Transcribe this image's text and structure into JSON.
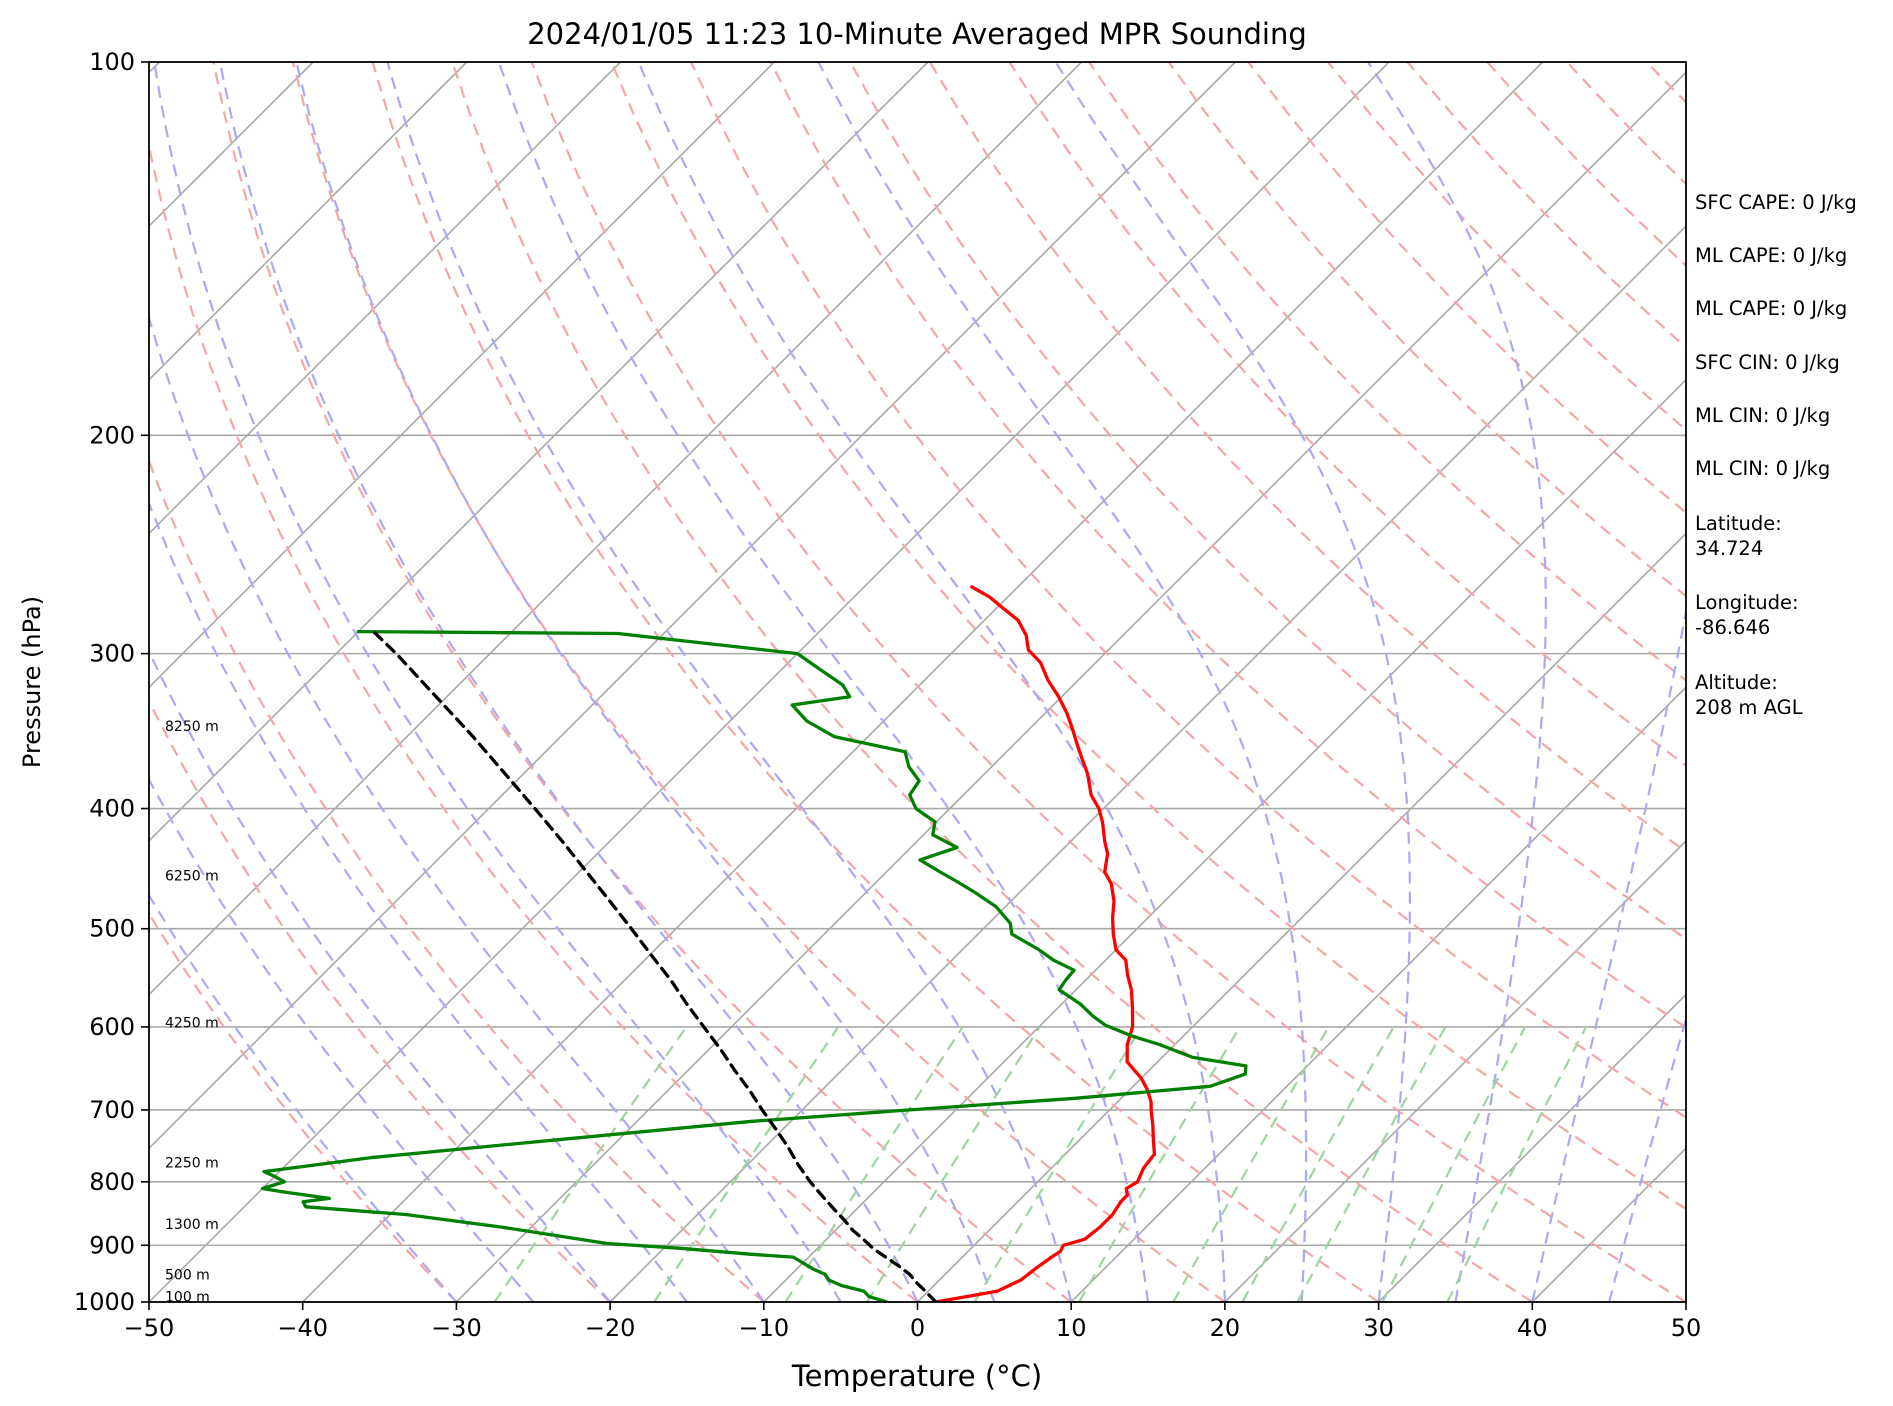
{
  "chart_data": {
    "type": "line",
    "title": "2024/01/05 11:23 10-Minute Averaged MPR Sounding",
    "xlabel": "Temperature (°C)",
    "ylabel": "Pressure (hPa)",
    "xlim": [
      -50,
      50
    ],
    "ylim": [
      1000,
      100
    ],
    "y_scale": "log",
    "x_ticks": [
      -50,
      -40,
      -30,
      -20,
      -10,
      0,
      10,
      20,
      30,
      40,
      50
    ],
    "x_tick_labels": [
      "−50",
      "−40",
      "−30",
      "−20",
      "−10",
      "0",
      "10",
      "20",
      "30",
      "40",
      "50"
    ],
    "y_ticks": [
      100,
      200,
      300,
      400,
      500,
      600,
      700,
      800,
      900,
      1000
    ],
    "y_tick_labels": [
      "100",
      "200",
      "300",
      "400",
      "500",
      "600",
      "700",
      "800",
      "900",
      "1000"
    ],
    "grid": true,
    "skew": true,
    "series": [
      {
        "color": "#ff0000",
        "points": [
          [
            1.2,
            1000
          ],
          [
            4.5,
            980
          ],
          [
            5.3,
            960
          ],
          [
            5.5,
            940
          ],
          [
            5.8,
            920
          ],
          [
            6.0,
            910
          ],
          [
            5.8,
            900
          ],
          [
            6.8,
            890
          ],
          [
            7.0,
            870
          ],
          [
            7.0,
            850
          ],
          [
            6.7,
            830
          ],
          [
            6.7,
            820
          ],
          [
            6.2,
            810
          ],
          [
            6.5,
            800
          ],
          [
            6.0,
            780
          ],
          [
            5.8,
            760
          ],
          [
            4.8,
            740
          ],
          [
            3.8,
            720
          ],
          [
            2.7,
            700
          ],
          [
            2.2,
            690
          ],
          [
            1.2,
            675
          ],
          [
            0.0,
            660
          ],
          [
            -1.0,
            650
          ],
          [
            -2.0,
            640
          ],
          [
            -3.1,
            620
          ],
          [
            -3.9,
            600
          ],
          [
            -5.1,
            580
          ],
          [
            -6.4,
            560
          ],
          [
            -7.6,
            545
          ],
          [
            -8.7,
            530
          ],
          [
            -10.0,
            520
          ],
          [
            -11.2,
            505
          ],
          [
            -12.3,
            490
          ],
          [
            -13.3,
            475
          ],
          [
            -14.6,
            460
          ],
          [
            -15.8,
            450
          ],
          [
            -16.8,
            435
          ],
          [
            -17.8,
            425
          ],
          [
            -19.2,
            410
          ],
          [
            -20.3,
            400
          ],
          [
            -21.7,
            390
          ],
          [
            -23.3,
            375
          ],
          [
            -24.6,
            365
          ],
          [
            -25.9,
            355
          ],
          [
            -27.2,
            345
          ],
          [
            -28.6,
            335
          ],
          [
            -30.2,
            325
          ],
          [
            -32.0,
            315
          ],
          [
            -33.6,
            305
          ],
          [
            -35.2,
            298
          ],
          [
            -36.3,
            290
          ],
          [
            -37.8,
            282
          ],
          [
            -39.5,
            276
          ],
          [
            -41.2,
            270
          ],
          [
            -43.0,
            265
          ]
        ]
      },
      {
        "color": "#008000",
        "points": [
          [
            -2.0,
            1000
          ],
          [
            -3.5,
            990
          ],
          [
            -4.2,
            980
          ],
          [
            -6.0,
            970
          ],
          [
            -7.2,
            960
          ],
          [
            -7.8,
            950
          ],
          [
            -9.0,
            940
          ],
          [
            -10.0,
            930
          ],
          [
            -11.0,
            920
          ],
          [
            -14.0,
            915
          ],
          [
            -19.0,
            905
          ],
          [
            -24.0,
            897
          ],
          [
            -27.5,
            885
          ],
          [
            -32.0,
            870
          ],
          [
            -39.0,
            850
          ],
          [
            -46.0,
            838
          ],
          [
            -46.5,
            830
          ],
          [
            -45.0,
            825
          ],
          [
            -48.5,
            815
          ],
          [
            -50.0,
            810
          ],
          [
            -49.0,
            800
          ],
          [
            -50.0,
            792
          ],
          [
            -51.0,
            785
          ],
          [
            -45.0,
            765
          ],
          [
            -34.0,
            740
          ],
          [
            -22.5,
            715
          ],
          [
            -13.0,
            700
          ],
          [
            -3.0,
            685
          ],
          [
            5.0,
            670
          ],
          [
            6.5,
            655
          ],
          [
            6.0,
            645
          ],
          [
            2.0,
            635
          ],
          [
            -1.0,
            620
          ],
          [
            -3.4,
            610
          ],
          [
            -5.8,
            598
          ],
          [
            -7.2,
            588
          ],
          [
            -8.8,
            575
          ],
          [
            -11.1,
            560
          ],
          [
            -11.3,
            550
          ],
          [
            -11.4,
            540
          ],
          [
            -13.4,
            530
          ],
          [
            -15.0,
            520
          ],
          [
            -17.8,
            505
          ],
          [
            -18.6,
            495
          ],
          [
            -20.6,
            480
          ],
          [
            -22.8,
            468
          ],
          [
            -24.8,
            458
          ],
          [
            -26.5,
            450
          ],
          [
            -28.6,
            440
          ],
          [
            -27.0,
            430
          ],
          [
            -29.4,
            420
          ],
          [
            -30.1,
            410
          ],
          [
            -32.2,
            400
          ],
          [
            -33.5,
            390
          ],
          [
            -33.8,
            380
          ],
          [
            -35.4,
            370
          ],
          [
            -36.6,
            360
          ],
          [
            -42.2,
            350
          ],
          [
            -45.0,
            340
          ],
          [
            -47.0,
            330
          ],
          [
            -43.8,
            325
          ],
          [
            -45.0,
            318
          ],
          [
            -47.2,
            310
          ],
          [
            -50.0,
            300
          ],
          [
            -63.0,
            289
          ],
          [
            -80.0,
            288
          ]
        ]
      },
      {
        "color": "#000000",
        "dash": true,
        "points": [
          [
            1.2,
            1000
          ],
          [
            0.5,
            990
          ],
          [
            -0.2,
            980
          ],
          [
            -1.3,
            965
          ],
          [
            -2.3,
            950
          ],
          [
            -3.6,
            935
          ],
          [
            -5.0,
            920
          ],
          [
            -6.4,
            905
          ],
          [
            -7.6,
            890
          ],
          [
            -8.9,
            875
          ],
          [
            -10.0,
            860
          ],
          [
            -11.6,
            840
          ],
          [
            -13.2,
            820
          ],
          [
            -14.8,
            800
          ],
          [
            -16.7,
            775
          ],
          [
            -18.5,
            750
          ],
          [
            -20.5,
            725
          ],
          [
            -22.6,
            700
          ],
          [
            -24.7,
            675
          ],
          [
            -27.0,
            650
          ],
          [
            -29.3,
            625
          ],
          [
            -31.8,
            600
          ],
          [
            -34.4,
            575
          ],
          [
            -37.0,
            550
          ],
          [
            -39.9,
            525
          ],
          [
            -42.9,
            500
          ],
          [
            -46.1,
            475
          ],
          [
            -49.5,
            450
          ],
          [
            -53.1,
            425
          ],
          [
            -57.0,
            400
          ],
          [
            -61.2,
            375
          ],
          [
            -65.7,
            350
          ],
          [
            -70.7,
            325
          ],
          [
            -76.1,
            300
          ],
          [
            -79.0,
            288
          ]
        ]
      }
    ],
    "height_labels": [
      {
        "text": "100 m",
        "p": 990
      },
      {
        "text": "500 m",
        "p": 950
      },
      {
        "text": "1300 m",
        "p": 865
      },
      {
        "text": "2250 m",
        "p": 772
      },
      {
        "text": "4250 m",
        "p": 595
      },
      {
        "text": "6250 m",
        "p": 453
      },
      {
        "text": "8250 m",
        "p": 343
      }
    ]
  },
  "side_panel": {
    "sfc_cape": "SFC CAPE: 0 J/kg",
    "ml_cape_1": "ML CAPE: 0 J/kg",
    "ml_cape_2": "ML CAPE: 0 J/kg",
    "sfc_cin": "SFC CIN: 0 J/kg",
    "ml_cin_1": "ML CIN: 0 J/kg",
    "ml_cin_2": "ML CIN: 0 J/kg",
    "latitude": "Latitude:\n34.724",
    "longitude": "Longitude:\n-86.646",
    "altitude": "Altitude:\n208 m AGL"
  },
  "colors": {
    "temperature": "#ff0000",
    "dewpoint": "#008000",
    "parcel": "#000000",
    "dry_adiabat": "#f4a6a6",
    "moist_adiabat": "#a9a9f4",
    "mixing_ratio": "#9fd39f",
    "isotherm": "#a8a8a8"
  }
}
